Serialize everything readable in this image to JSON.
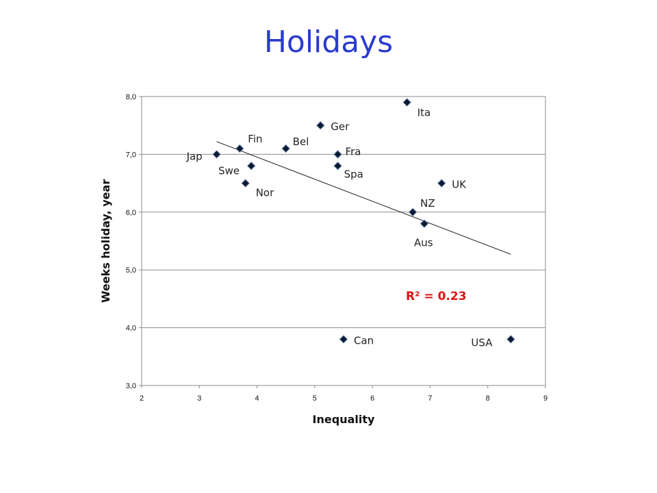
{
  "slide": {
    "title": "Holidays"
  },
  "chart_data": {
    "type": "scatter",
    "title": "",
    "xlabel": "Inequality",
    "ylabel": "Weeks holiday, year",
    "xlim": [
      2,
      9
    ],
    "ylim": [
      3.0,
      8.0
    ],
    "x_ticks": [
      "2",
      "3",
      "4",
      "5",
      "6",
      "7",
      "8",
      "9"
    ],
    "y_ticks": [
      "3,0",
      "4,0",
      "5,0",
      "6,0",
      "7,0",
      "8,0"
    ],
    "grid": "horizontal",
    "marker_color": "#0b1a33",
    "trendline": {
      "x": [
        3.3,
        8.4
      ],
      "y": [
        7.22,
        5.27
      ]
    },
    "annotation": "R² = 0.23",
    "points": [
      {
        "label": "Jap",
        "x": 3.3,
        "y": 7.0
      },
      {
        "label": "Fin",
        "x": 3.7,
        "y": 7.1
      },
      {
        "label": "Swe",
        "x": 3.9,
        "y": 6.8
      },
      {
        "label": "Nor",
        "x": 3.8,
        "y": 6.5
      },
      {
        "label": "Bel",
        "x": 4.5,
        "y": 7.1
      },
      {
        "label": "Ger",
        "x": 5.1,
        "y": 7.5
      },
      {
        "label": "Fra",
        "x": 5.4,
        "y": 7.0
      },
      {
        "label": "Spa",
        "x": 5.4,
        "y": 6.8
      },
      {
        "label": "Ita",
        "x": 6.6,
        "y": 7.9
      },
      {
        "label": "UK",
        "x": 7.2,
        "y": 6.5
      },
      {
        "label": "NZ",
        "x": 6.7,
        "y": 6.0
      },
      {
        "label": "Aus",
        "x": 6.9,
        "y": 5.8
      },
      {
        "label": "Can",
        "x": 5.5,
        "y": 3.8
      },
      {
        "label": "USA",
        "x": 8.4,
        "y": 3.8
      }
    ]
  }
}
